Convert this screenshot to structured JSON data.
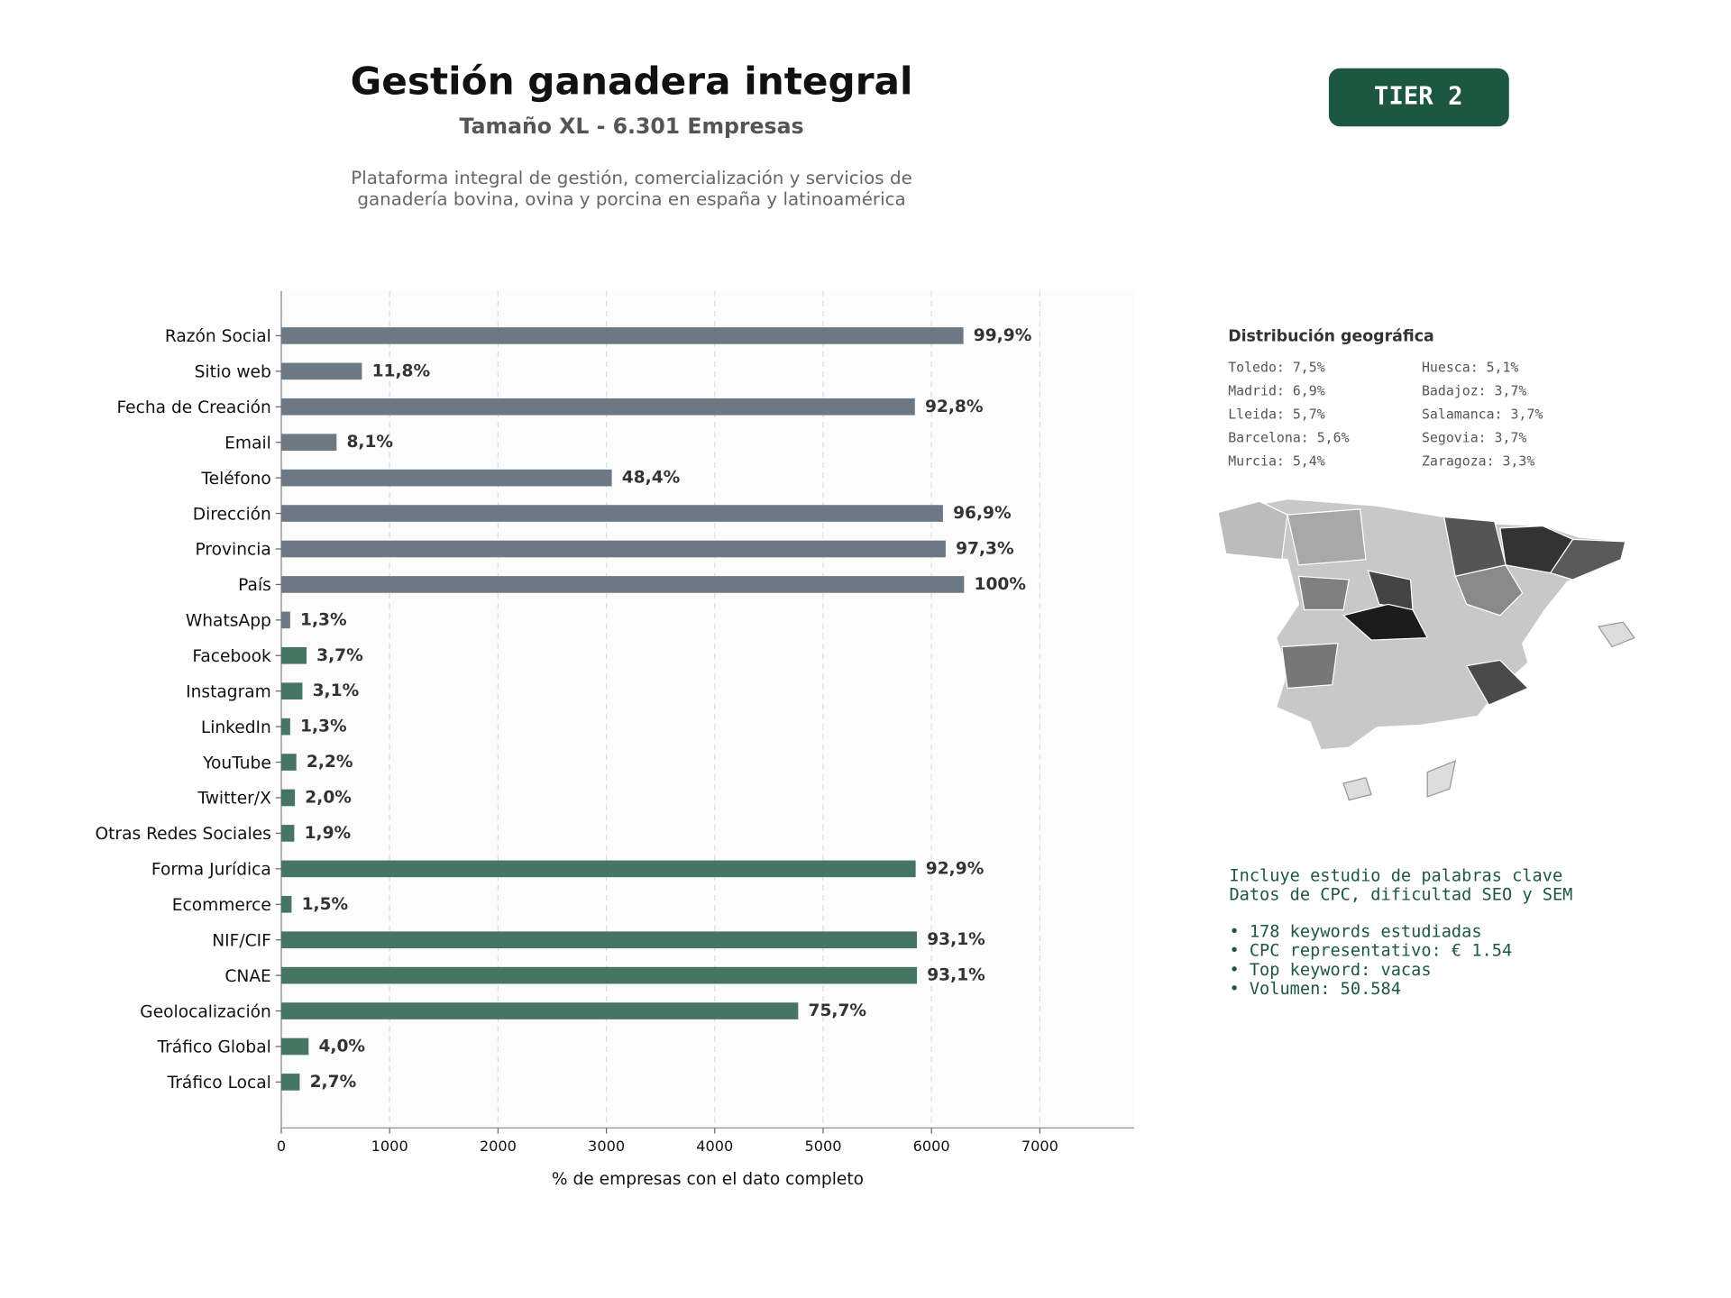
{
  "chart_data": {
    "type": "bar",
    "orientation": "horizontal",
    "title": "Gestión ganadera integral",
    "subtitle": "Tamaño XL - 6.301 Empresas",
    "description": [
      "Plataforma integral de gestión, comercialización y servicios de",
      "ganadería bovina, ovina y porcina en españa y latinoamérica"
    ],
    "badge": "TIER 2",
    "xlabel": "% de empresas con el dato completo",
    "categories": [
      "Razón Social",
      "Sitio web",
      "Fecha de Creación",
      "Email",
      "Teléfono",
      "Dirección",
      "Provincia",
      "País",
      "WhatsApp",
      "Facebook",
      "Instagram",
      "LinkedIn",
      "YouTube",
      "Twitter/X",
      "Otras Redes Sociales",
      "Forma Jurídica",
      "Ecommerce",
      "NIF/CIF",
      "CNAE",
      "Geolocalización",
      "Tráfico Global",
      "Tráfico Local"
    ],
    "values": [
      6295,
      744,
      5847,
      510,
      3050,
      6106,
      6131,
      6301,
      82,
      233,
      195,
      82,
      139,
      126,
      120,
      5854,
      95,
      5866,
      5866,
      4770,
      252,
      170
    ],
    "value_labels": [
      "99,9%",
      "11,8%",
      "92,8%",
      "8,1%",
      "48,4%",
      "96,9%",
      "97,3%",
      "100%",
      "1,3%",
      "3,7%",
      "3,1%",
      "1,3%",
      "2,2%",
      "2,0%",
      "1,9%",
      "92,9%",
      "1,5%",
      "93,1%",
      "93,1%",
      "75,7%",
      "4,0%",
      "2,7%"
    ],
    "colors": [
      "#6c7883",
      "#6c7883",
      "#6c7883",
      "#6c7883",
      "#6c7883",
      "#6c7883",
      "#6c7883",
      "#6c7883",
      "#6c7883",
      "#477563",
      "#477563",
      "#477563",
      "#477563",
      "#477563",
      "#477563",
      "#477563",
      "#477563",
      "#477563",
      "#477563",
      "#477563",
      "#477563",
      "#477563"
    ],
    "xlim": [
      0,
      7870
    ],
    "xticks": [
      0,
      1000,
      2000,
      3000,
      4000,
      5000,
      6000,
      7000
    ],
    "grid": true
  },
  "geo": {
    "title": "Distribución geográfica",
    "items": [
      "Toledo: 7,5%",
      "Madrid: 6,9%",
      "Lleida: 5,7%",
      "Barcelona: 5,6%",
      "Murcia: 5,4%",
      "Huesca: 5,1%",
      "Badajoz: 3,7%",
      "Salamanca: 3,7%",
      "Segovia: 3,7%",
      "Zaragoza: 3,3%"
    ]
  },
  "keywords": {
    "intro": [
      "Incluye estudio de palabras clave",
      "Datos de CPC, dificultad SEO y SEM"
    ],
    "bullets": [
      "• 178 keywords estudiadas",
      "• CPC representativo: € 1.54",
      "• Top keyword: vacas",
      "• Volumen: 50.584"
    ]
  }
}
